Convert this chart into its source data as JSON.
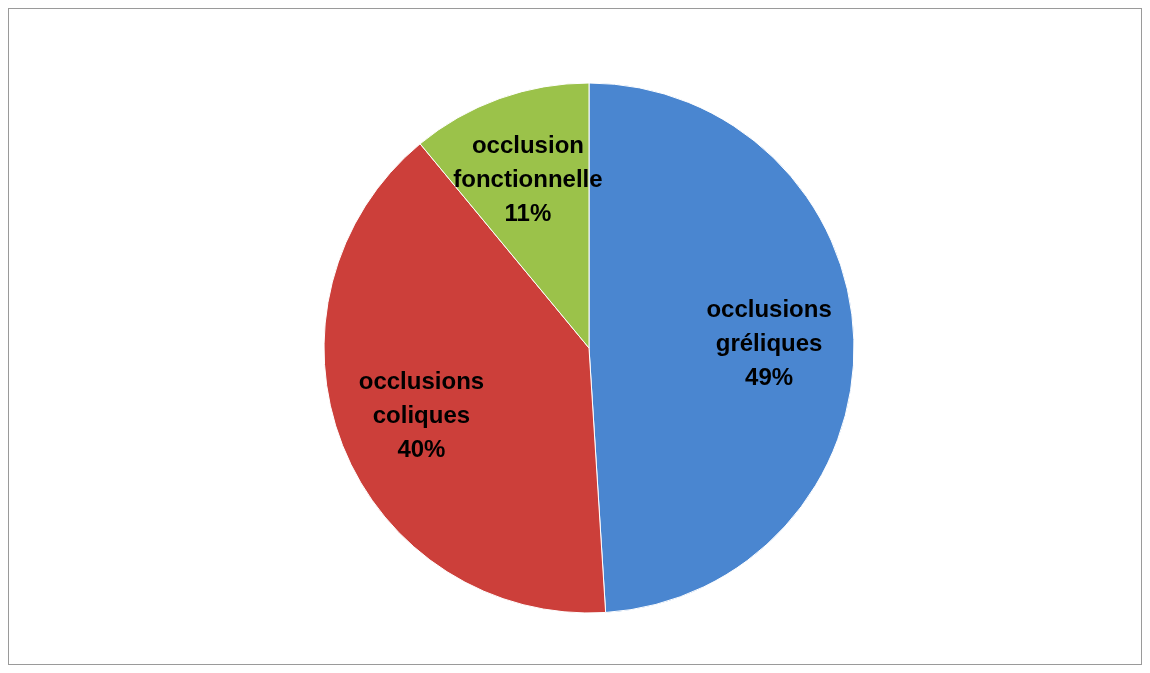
{
  "chart_data": {
    "type": "pie",
    "categories": [
      "occlusions gréliques",
      "occlusions coliques",
      "occlusion fonctionnelle"
    ],
    "values": [
      49,
      40,
      11
    ],
    "colors": [
      "#4a86d0",
      "#cc3f3a",
      "#9bc24a"
    ],
    "value_labels": [
      "49%",
      "40%",
      "11%"
    ],
    "legend": false
  }
}
